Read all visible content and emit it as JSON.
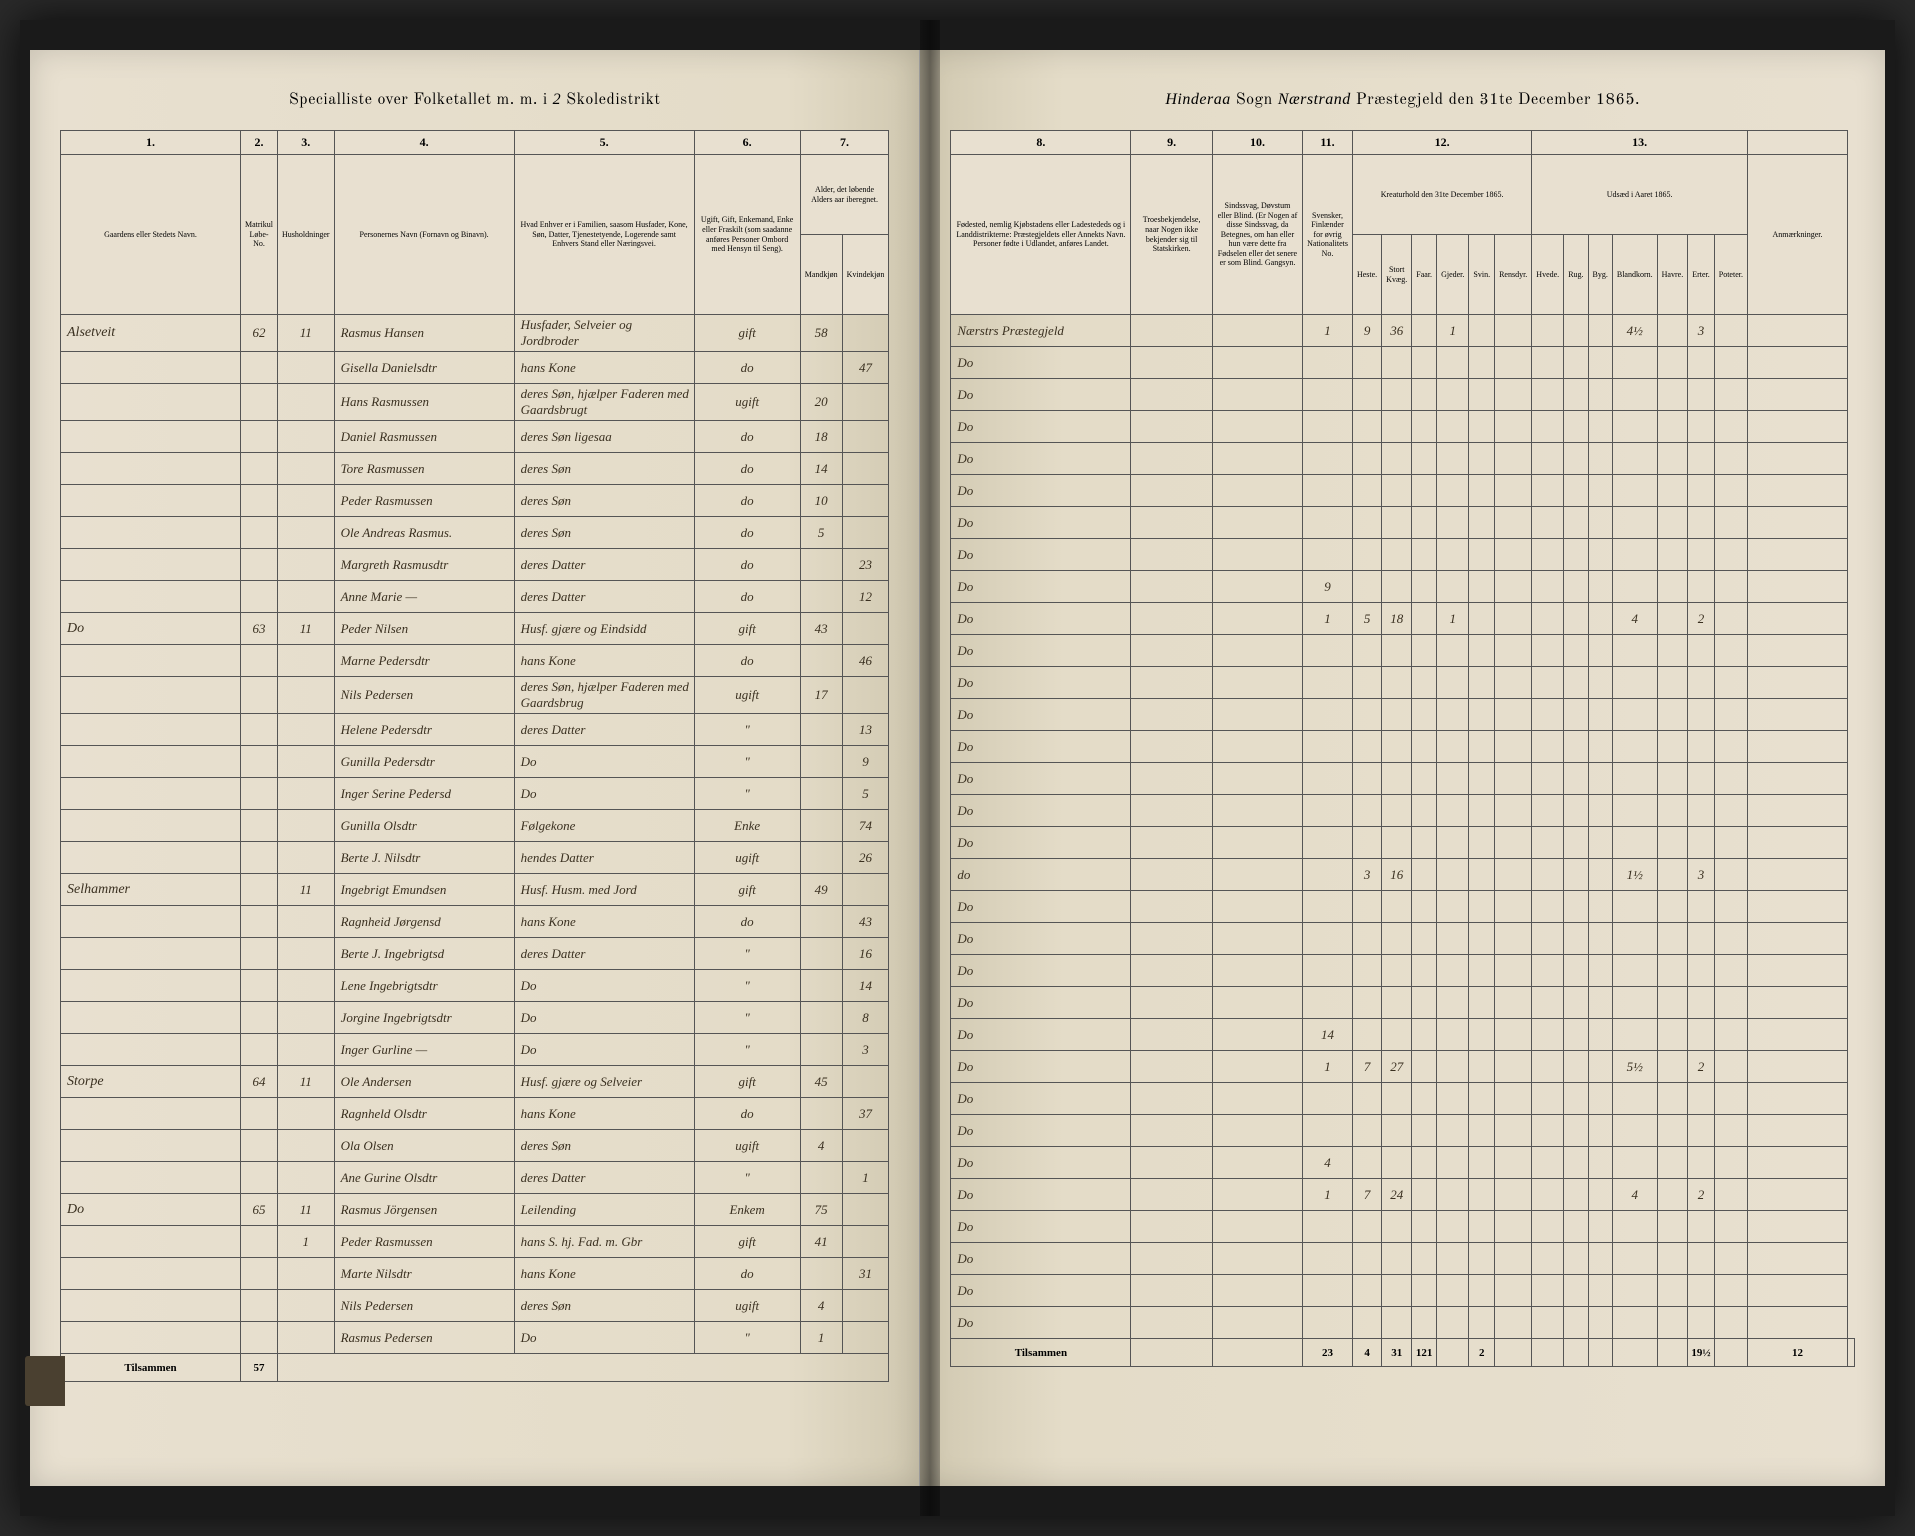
{
  "header_left": {
    "title_prefix": "Specialliste over Folketallet m. m. i",
    "district_num": "2",
    "title_suffix": "Skoledistrikt"
  },
  "header_right": {
    "sogn_script": "Hinderaa",
    "sogn_label": "Sogn",
    "prgjeld_script": "Nærstrand",
    "prgjeld_label": "Præstegjeld den 31te December 1865."
  },
  "left_cols": {
    "c1": "1.",
    "c2": "2.",
    "c3": "3.",
    "c4": "4.",
    "c5": "5.",
    "c6": "6.",
    "c7": "7."
  },
  "right_cols": {
    "c8": "8.",
    "c9": "9.",
    "c10": "10.",
    "c11": "11.",
    "c12": "12.",
    "c13": "13."
  },
  "left_headers": {
    "farm": "Gaardens eller Stedets\nNavn.",
    "matr": "Matrikul Løbe-No.",
    "huush": "Husholdninger",
    "no": "No.",
    "name": "Personernes Navn (Fornavn og Binavn).",
    "relation": "Hvad Enhver er i Familien, saasom Husfader, Kone, Søn, Datter, Tjenestetyende, Logerende samt\nEnhvers Stand eller Næringsvei.",
    "civil": "Ugift, Gift, Enkemand, Enke eller Fraskilt (som saadanne anføres Personer Ombord med Hensyn til Seng).",
    "age": "Alder, det løbende Alders aar iberegnet.",
    "age_m": "Mandkjøn",
    "age_k": "Kvindekjøn"
  },
  "right_headers": {
    "birthplace": "Fødested,\nnemlig Kjøbstadens eller Ladestededs og i Landdistrikterne: Præstegjeldets eller Annekts Navn. Personer fødte i Udlandet, anføres Landet.",
    "religion": "Troesbekjendelse, naar Nogen ikke bekjender sig til Statskirken.",
    "disability": "Sindssvag, Døvstum eller Blind. (Er Nogen af disse Sindssvag, da Betegnes, om han eller hun være dette fra Fødselen eller det senere er som Blind.\nGangsyn.",
    "nationality": "Svensker, Finlænder for øvrig Nationalitets No.",
    "livestock_title": "Kreaturhold\nden 31te December 1865.",
    "heste": "Heste.",
    "stort": "Stort Kvæg.",
    "faar": "Faar.",
    "gjeder": "Gjeder.",
    "svin": "Svin.",
    "rensdyr": "Rensdyr.",
    "sowing_title": "Udsæd i\nAaret 1865.",
    "hvede": "Hvede.",
    "rug": "Rug.",
    "byg": "Byg.",
    "bland": "Blandkorn.",
    "havre": "Havre.",
    "erter": "Erter.",
    "poteter": "Poteter.",
    "notes": "Anmærkninger."
  },
  "rows": [
    {
      "farm": "Alsetveit",
      "matr": "62",
      "huush": "1",
      "no": "1",
      "name": "Rasmus Hansen",
      "rel": "Husfader, Selveier og Jordbroder",
      "civil": "gift",
      "age_m": "58",
      "age_k": "",
      "birth": "Nærstrs Præstegjeld",
      "lv": [
        "1",
        "9",
        "36",
        "",
        "1",
        "",
        "",
        "",
        "",
        "",
        "4½",
        "",
        "3"
      ]
    },
    {
      "farm": "",
      "matr": "",
      "huush": "",
      "no": "",
      "name": "Gisella Danielsdtr",
      "rel": "hans Kone",
      "civil": "do",
      "age_m": "",
      "age_k": "47",
      "birth": "Do",
      "lv": []
    },
    {
      "farm": "",
      "matr": "",
      "huush": "",
      "no": "",
      "name": "Hans Rasmussen",
      "rel": "deres Søn, hjælper Faderen med Gaardsbrugt",
      "civil": "ugift",
      "age_m": "20",
      "age_k": "",
      "birth": "Do",
      "lv": []
    },
    {
      "farm": "",
      "matr": "",
      "huush": "",
      "no": "",
      "name": "Daniel Rasmussen",
      "rel": "deres Søn ligesaa",
      "civil": "do",
      "age_m": "18",
      "age_k": "",
      "birth": "Do",
      "lv": []
    },
    {
      "farm": "",
      "matr": "",
      "huush": "",
      "no": "",
      "name": "Tore Rasmussen",
      "rel": "deres Søn",
      "civil": "do",
      "age_m": "14",
      "age_k": "",
      "birth": "Do",
      "lv": []
    },
    {
      "farm": "",
      "matr": "",
      "huush": "",
      "no": "",
      "name": "Peder Rasmussen",
      "rel": "deres Søn",
      "civil": "do",
      "age_m": "10",
      "age_k": "",
      "birth": "Do",
      "lv": []
    },
    {
      "farm": "",
      "matr": "",
      "huush": "",
      "no": "",
      "name": "Ole Andreas Rasmus.",
      "rel": "deres Søn",
      "civil": "do",
      "age_m": "5",
      "age_k": "",
      "birth": "Do",
      "lv": []
    },
    {
      "farm": "",
      "matr": "",
      "huush": "",
      "no": "",
      "name": "Margreth Rasmusdtr",
      "rel": "deres Datter",
      "civil": "do",
      "age_m": "",
      "age_k": "23",
      "birth": "Do",
      "lv": []
    },
    {
      "farm": "",
      "matr": "",
      "huush": "",
      "no": "",
      "name": "Anne Marie   —",
      "rel": "deres Datter",
      "civil": "do",
      "age_m": "",
      "age_k": "12",
      "birth": "Do",
      "lv": [
        "9",
        "",
        "",
        "",
        "",
        "",
        "",
        "",
        "",
        "",
        "",
        "",
        ""
      ]
    },
    {
      "farm": "Do",
      "matr": "63",
      "huush": "1",
      "no": "1",
      "name": "Peder Nilsen",
      "rel": "Husf. gjære og Eindsidd",
      "civil": "gift",
      "age_m": "43",
      "age_k": "",
      "birth": "Do",
      "lv": [
        "1",
        "5",
        "18",
        "",
        "1",
        "",
        "",
        "",
        "",
        "",
        "4",
        "",
        "2"
      ]
    },
    {
      "farm": "",
      "matr": "",
      "huush": "",
      "no": "",
      "name": "Marne Pedersdtr",
      "rel": "hans Kone",
      "civil": "do",
      "age_m": "",
      "age_k": "46",
      "birth": "Do",
      "lv": []
    },
    {
      "farm": "",
      "matr": "",
      "huush": "",
      "no": "",
      "name": "Nils Pedersen",
      "rel": "deres Søn, hjælper Faderen med Gaardsbrug",
      "civil": "ugift",
      "age_m": "17",
      "age_k": "",
      "birth": "Do",
      "lv": []
    },
    {
      "farm": "",
      "matr": "",
      "huush": "",
      "no": "",
      "name": "Helene Pedersdtr",
      "rel": "deres Datter",
      "civil": "\"",
      "age_m": "",
      "age_k": "13",
      "birth": "Do",
      "lv": []
    },
    {
      "farm": "",
      "matr": "",
      "huush": "",
      "no": "",
      "name": "Gunilla Pedersdtr",
      "rel": "Do",
      "civil": "\"",
      "age_m": "",
      "age_k": "9",
      "birth": "Do",
      "lv": []
    },
    {
      "farm": "",
      "matr": "",
      "huush": "",
      "no": "",
      "name": "Inger Serine Pedersd",
      "rel": "Do",
      "civil": "\"",
      "age_m": "",
      "age_k": "5",
      "birth": "Do",
      "lv": []
    },
    {
      "farm": "",
      "matr": "",
      "huush": "",
      "no": "",
      "name": "Gunilla Olsdtr",
      "rel": "Følgekone",
      "civil": "Enke",
      "age_m": "",
      "age_k": "74",
      "birth": "Do",
      "lv": []
    },
    {
      "farm": "",
      "matr": "",
      "huush": "",
      "no": "",
      "name": "Berte J. Nilsdtr",
      "rel": "hendes Datter",
      "civil": "ugift",
      "age_m": "",
      "age_k": "26",
      "birth": "Do",
      "lv": []
    },
    {
      "farm": "Selhammer",
      "matr": "",
      "huush": "1",
      "no": "1",
      "name": "Ingebrigt Emundsen",
      "rel": "Husf. Husm. med Jord",
      "civil": "gift",
      "age_m": "49",
      "age_k": "",
      "birth": "do",
      "lv": [
        "",
        "3",
        "16",
        "",
        "",
        "",
        "",
        "",
        "",
        "",
        "1½",
        "",
        "3"
      ]
    },
    {
      "farm": "",
      "matr": "",
      "huush": "",
      "no": "",
      "name": "Ragnheid Jørgensd",
      "rel": "hans Kone",
      "civil": "do",
      "age_m": "",
      "age_k": "43",
      "birth": "Do",
      "lv": []
    },
    {
      "farm": "",
      "matr": "",
      "huush": "",
      "no": "",
      "name": "Berte J. Ingebrigtsd",
      "rel": "deres Datter",
      "civil": "\"",
      "age_m": "",
      "age_k": "16",
      "birth": "Do",
      "lv": []
    },
    {
      "farm": "",
      "matr": "",
      "huush": "",
      "no": "",
      "name": "Lene Ingebrigtsdtr",
      "rel": "Do",
      "civil": "\"",
      "age_m": "",
      "age_k": "14",
      "birth": "Do",
      "lv": []
    },
    {
      "farm": "",
      "matr": "",
      "huush": "",
      "no": "",
      "name": "Jorgine Ingebrigtsdtr",
      "rel": "Do",
      "civil": "\"",
      "age_m": "",
      "age_k": "8",
      "birth": "Do",
      "lv": []
    },
    {
      "farm": "",
      "matr": "",
      "huush": "",
      "no": "",
      "name": "Inger Gurline   —",
      "rel": "Do",
      "civil": "\"",
      "age_m": "",
      "age_k": "3",
      "birth": "Do",
      "lv": [
        "14",
        "",
        "",
        "",
        "",
        "",
        "",
        "",
        "",
        "",
        "",
        "",
        ""
      ]
    },
    {
      "farm": "Storpe",
      "matr": "64",
      "huush": "1",
      "no": "1",
      "name": "Ole Andersen",
      "rel": "Husf. gjære og Selveier",
      "civil": "gift",
      "age_m": "45",
      "age_k": "",
      "birth": "Do",
      "lv": [
        "1",
        "7",
        "27",
        "",
        "",
        "",
        "",
        "",
        "",
        "",
        "5½",
        "",
        "2"
      ]
    },
    {
      "farm": "",
      "matr": "",
      "huush": "",
      "no": "",
      "name": "Ragnheld Olsdtr",
      "rel": "hans Kone",
      "civil": "do",
      "age_m": "",
      "age_k": "37",
      "birth": "Do",
      "lv": []
    },
    {
      "farm": "",
      "matr": "",
      "huush": "",
      "no": "",
      "name": "Ola Olsen",
      "rel": "deres Søn",
      "civil": "ugift",
      "age_m": "4",
      "age_k": "",
      "birth": "Do",
      "lv": []
    },
    {
      "farm": "",
      "matr": "",
      "huush": "",
      "no": "",
      "name": "Ane Gurine Olsdtr",
      "rel": "deres Datter",
      "civil": "\"",
      "age_m": "",
      "age_k": "1",
      "birth": "Do",
      "lv": [
        "4",
        "",
        "",
        "",
        "",
        "",
        "",
        "",
        "",
        "",
        "",
        "",
        ""
      ]
    },
    {
      "farm": "Do",
      "matr": "65",
      "huush": "1",
      "no": "1",
      "name": "Rasmus Jörgensen",
      "rel": "Leilending",
      "civil": "Enkem",
      "age_m": "75",
      "age_k": "",
      "birth": "Do",
      "lv": [
        "1",
        "7",
        "24",
        "",
        "",
        "",
        "",
        "",
        "",
        "",
        "4",
        "",
        "2"
      ]
    },
    {
      "farm": "",
      "matr": "",
      "huush": "",
      "no": "1",
      "name": "Peder Rasmussen",
      "rel": "hans S. hj. Fad. m. Gbr",
      "civil": "gift",
      "age_m": "41",
      "age_k": "",
      "birth": "Do",
      "lv": []
    },
    {
      "farm": "",
      "matr": "",
      "huush": "",
      "no": "",
      "name": "Marte Nilsdtr",
      "rel": "hans Kone",
      "civil": "do",
      "age_m": "",
      "age_k": "31",
      "birth": "Do",
      "lv": []
    },
    {
      "farm": "",
      "matr": "",
      "huush": "",
      "no": "",
      "name": "Nils Pedersen",
      "rel": "deres Søn",
      "civil": "ugift",
      "age_m": "4",
      "age_k": "",
      "birth": "Do",
      "lv": []
    },
    {
      "farm": "",
      "matr": "",
      "huush": "",
      "no": "",
      "name": "Rasmus Pedersen",
      "rel": "Do",
      "civil": "\"",
      "age_m": "1",
      "age_k": "",
      "birth": "Do",
      "lv": []
    }
  ],
  "footer": {
    "label": "Tilsammen",
    "left_count": "57",
    "right_totals": [
      "23",
      "4",
      "31",
      "121",
      "",
      "2",
      "",
      "",
      "",
      "",
      "",
      "",
      "19½",
      "",
      "12"
    ]
  },
  "colors": {
    "paper": "#e8e0d0",
    "ink": "#3a3020",
    "border": "#555555",
    "background": "#2a2a2a"
  }
}
